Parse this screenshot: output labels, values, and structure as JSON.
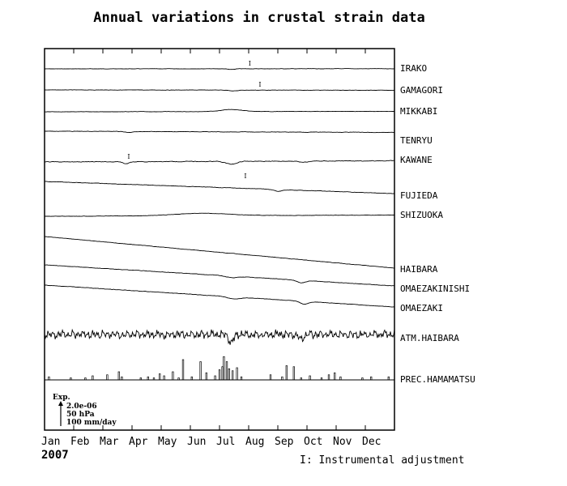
{
  "chart_data": {
    "type": "line",
    "title": "Annual variations in crustal strain data",
    "year": "2007",
    "x_tick_labels": [
      "Jan",
      "Feb",
      "Mar",
      "Apr",
      "May",
      "Jun",
      "Jul",
      "Aug",
      "Sep",
      "Oct",
      "Nov",
      "Dec"
    ],
    "x_domain_months": [
      0,
      12
    ],
    "series": [
      {
        "name": "IRAKO",
        "trend": [
          0,
          -0.2
        ],
        "noise": 0.3,
        "events": [
          {
            "m": 6.4,
            "d": 1.0,
            "w": 0.15
          }
        ],
        "adjustments": [
          7.05
        ]
      },
      {
        "name": "GAMAGORI",
        "trend": [
          0,
          0.4
        ],
        "noise": 0.3,
        "events": [
          {
            "m": 6.5,
            "d": 1.0,
            "w": 0.2
          }
        ],
        "adjustments": [
          7.4
        ]
      },
      {
        "name": "MIKKABI",
        "trend": [
          0,
          -0.5
        ],
        "noise": 0.3,
        "events": [
          {
            "m": 6.4,
            "d": -2.5,
            "w": 0.5
          }
        ],
        "adjustments": []
      },
      {
        "name": "TENRYU",
        "trend": [
          0,
          1.5
        ],
        "noise": 0.4,
        "events": [
          {
            "m": 2.9,
            "d": 1.0,
            "w": 0.2
          }
        ],
        "adjustments": []
      },
      {
        "name": "KAWANE",
        "trend": [
          0,
          -1.5
        ],
        "noise": 0.6,
        "events": [
          {
            "m": 2.8,
            "d": 2.5,
            "w": 0.15
          },
          {
            "m": 6.4,
            "d": 3.5,
            "w": 0.25
          },
          {
            "m": 8.9,
            "d": 1.5,
            "w": 0.2
          }
        ],
        "adjustments": [
          2.9
        ]
      },
      {
        "name": "FUJIEDA",
        "trend": [
          0,
          15
        ],
        "noise": 0.4,
        "events": [
          {
            "m": 8.0,
            "d": 2.0,
            "w": 0.2
          }
        ],
        "adjustments": [
          6.9
        ]
      },
      {
        "name": "SHIZUOKA",
        "trend": [
          0,
          -1.5
        ],
        "noise": 0.3,
        "events": [
          {
            "m": 5.4,
            "d": -3.0,
            "w": 1.3
          }
        ],
        "adjustments": []
      },
      {
        "name": "HAIBARA",
        "trend": [
          0,
          39
        ],
        "noise": 0.3,
        "events": [],
        "adjustments": []
      },
      {
        "name": "OMAEZAKINISHI",
        "trend": [
          0,
          26
        ],
        "noise": 0.4,
        "events": [
          {
            "m": 6.4,
            "d": 2.0,
            "w": 0.3
          },
          {
            "m": 8.8,
            "d": 3.0,
            "w": 0.2
          }
        ],
        "adjustments": []
      },
      {
        "name": "OMAEZAKI",
        "trend": [
          0,
          27
        ],
        "noise": 0.4,
        "events": [
          {
            "m": 6.5,
            "d": 2.5,
            "w": 0.3
          },
          {
            "m": 8.9,
            "d": 3.5,
            "w": 0.2
          }
        ],
        "adjustments": []
      },
      {
        "name": "ATM.HAIBARA",
        "kind": "pressure",
        "trend": [
          0,
          0
        ],
        "noise": 0,
        "events": [
          {
            "m": 6.4,
            "d": 9.0,
            "w": 0.12
          },
          {
            "m": 8.8,
            "d": 6.0,
            "w": 0.12
          }
        ],
        "adjustments": []
      },
      {
        "name": "PREC.HAMAMATSU",
        "kind": "precipitation",
        "bars": [
          {
            "m": 0.15,
            "v": 3
          },
          {
            "m": 0.9,
            "v": 2
          },
          {
            "m": 1.4,
            "v": 2
          },
          {
            "m": 1.65,
            "v": 4
          },
          {
            "m": 2.15,
            "v": 5
          },
          {
            "m": 2.55,
            "v": 8
          },
          {
            "m": 2.65,
            "v": 3
          },
          {
            "m": 3.3,
            "v": 2
          },
          {
            "m": 3.55,
            "v": 3
          },
          {
            "m": 3.75,
            "v": 2
          },
          {
            "m": 3.95,
            "v": 6
          },
          {
            "m": 4.1,
            "v": 4
          },
          {
            "m": 4.4,
            "v": 8
          },
          {
            "m": 4.6,
            "v": 2
          },
          {
            "m": 4.75,
            "v": 20
          },
          {
            "m": 5.05,
            "v": 3
          },
          {
            "m": 5.35,
            "v": 18
          },
          {
            "m": 5.55,
            "v": 7
          },
          {
            "m": 5.85,
            "v": 4
          },
          {
            "m": 6.0,
            "v": 10
          },
          {
            "m": 6.1,
            "v": 13
          },
          {
            "m": 6.15,
            "v": 23
          },
          {
            "m": 6.25,
            "v": 18
          },
          {
            "m": 6.33,
            "v": 11
          },
          {
            "m": 6.45,
            "v": 9
          },
          {
            "m": 6.6,
            "v": 12
          },
          {
            "m": 6.75,
            "v": 3
          },
          {
            "m": 7.75,
            "v": 5
          },
          {
            "m": 8.15,
            "v": 3
          },
          {
            "m": 8.3,
            "v": 14
          },
          {
            "m": 8.55,
            "v": 13
          },
          {
            "m": 8.8,
            "v": 2
          },
          {
            "m": 9.1,
            "v": 4
          },
          {
            "m": 9.5,
            "v": 2
          },
          {
            "m": 9.75,
            "v": 5
          },
          {
            "m": 9.95,
            "v": 7
          },
          {
            "m": 10.15,
            "v": 3
          },
          {
            "m": 10.9,
            "v": 2
          },
          {
            "m": 11.2,
            "v": 3
          },
          {
            "m": 11.8,
            "v": 3
          }
        ]
      }
    ],
    "scale_legend": {
      "title": "Exp.",
      "lines": [
        "2.0e-06",
        "50 hPa",
        "100 mm/day"
      ]
    },
    "note": "I: Instrumental adjustment",
    "adjustment_symbol": "I",
    "grid": false,
    "legend_placement": "right of each trace"
  }
}
